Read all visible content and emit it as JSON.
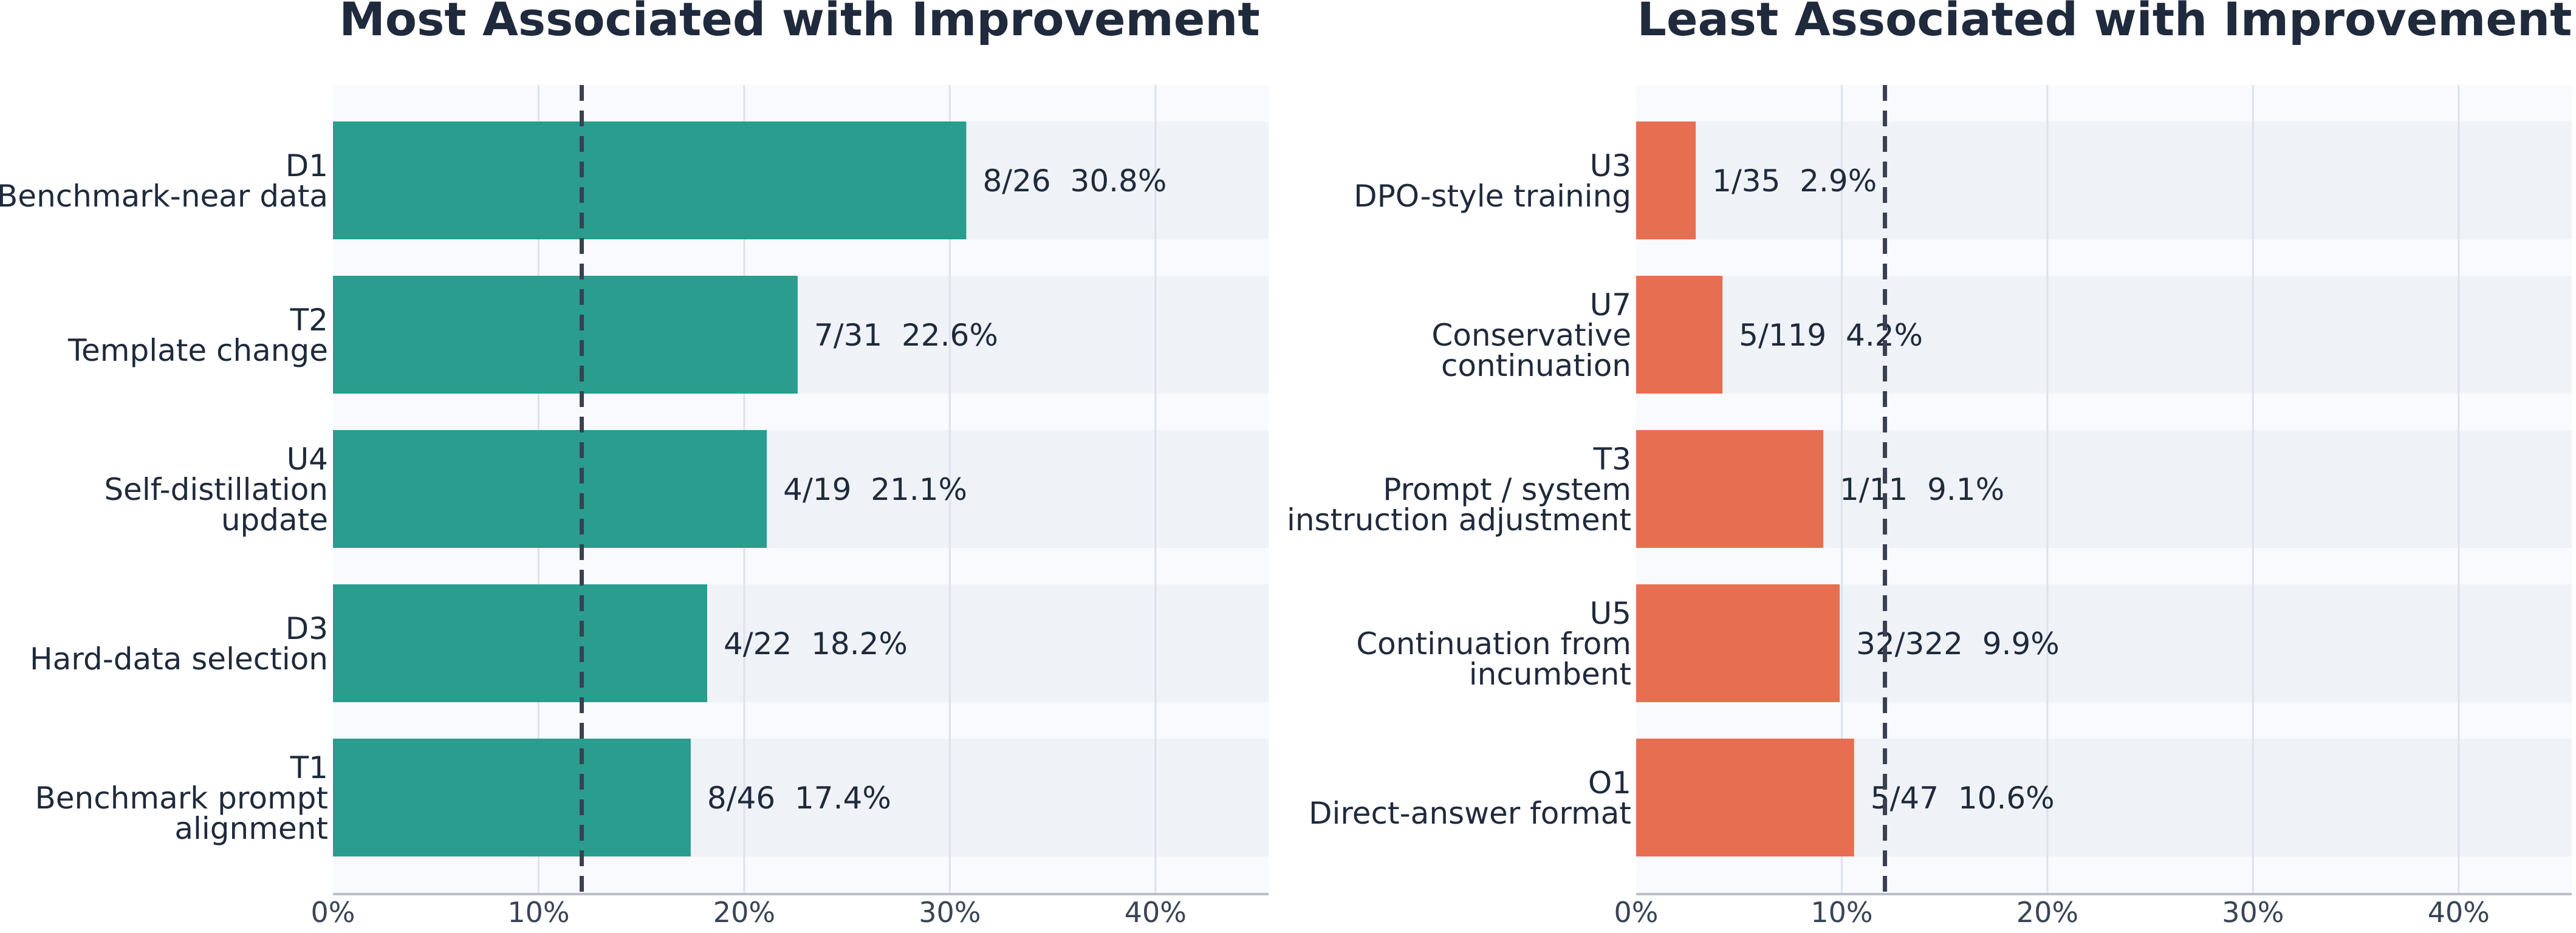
{
  "chart_data": [
    {
      "type": "bar",
      "orientation": "horizontal",
      "title": "Most Associated with Improvement",
      "bar_color": "#2a9d8f",
      "categories": [
        {
          "code": "D1",
          "name_lines": [
            "Benchmark-near data"
          ]
        },
        {
          "code": "T2",
          "name_lines": [
            "Template change"
          ]
        },
        {
          "code": "U4",
          "name_lines": [
            "Self-distillation",
            "update"
          ]
        },
        {
          "code": "D3",
          "name_lines": [
            "Hard-data selection"
          ]
        },
        {
          "code": "T1",
          "name_lines": [
            "Benchmark prompt",
            "alignment"
          ]
        }
      ],
      "values": [
        30.8,
        22.6,
        21.1,
        18.2,
        17.4
      ],
      "value_labels": [
        "8/26  30.8%",
        "7/31  22.6%",
        "4/19  21.1%",
        "4/22  18.2%",
        "8/46  17.4%"
      ],
      "reference_line": 12.1,
      "xlim": [
        0,
        45.5
      ],
      "xticks": [
        0,
        10,
        20,
        30,
        40
      ],
      "xtick_labels": [
        "0%",
        "10%",
        "20%",
        "30%",
        "40%"
      ],
      "grid": "vertical"
    },
    {
      "type": "bar",
      "orientation": "horizontal",
      "title": "Least Associated with Improvement",
      "bar_color": "#e76f51",
      "categories": [
        {
          "code": "U3",
          "name_lines": [
            "DPO-style training"
          ]
        },
        {
          "code": "U7",
          "name_lines": [
            "Conservative",
            "continuation"
          ]
        },
        {
          "code": "T3",
          "name_lines": [
            "Prompt / system",
            "instruction adjustment"
          ]
        },
        {
          "code": "U5",
          "name_lines": [
            "Continuation from",
            "incumbent"
          ]
        },
        {
          "code": "O1",
          "name_lines": [
            "Direct-answer format"
          ]
        }
      ],
      "values": [
        2.9,
        4.2,
        9.1,
        9.9,
        10.6
      ],
      "value_labels": [
        "1/35  2.9%",
        "5/119  4.2%",
        "1/11  9.1%",
        "32/322  9.9%",
        "5/47  10.6%"
      ],
      "reference_line": 12.1,
      "xlim": [
        0,
        45.5
      ],
      "xticks": [
        0,
        10,
        20,
        30,
        40
      ],
      "xtick_labels": [
        "0%",
        "10%",
        "20%",
        "30%",
        "40%"
      ],
      "grid": "vertical"
    }
  ]
}
